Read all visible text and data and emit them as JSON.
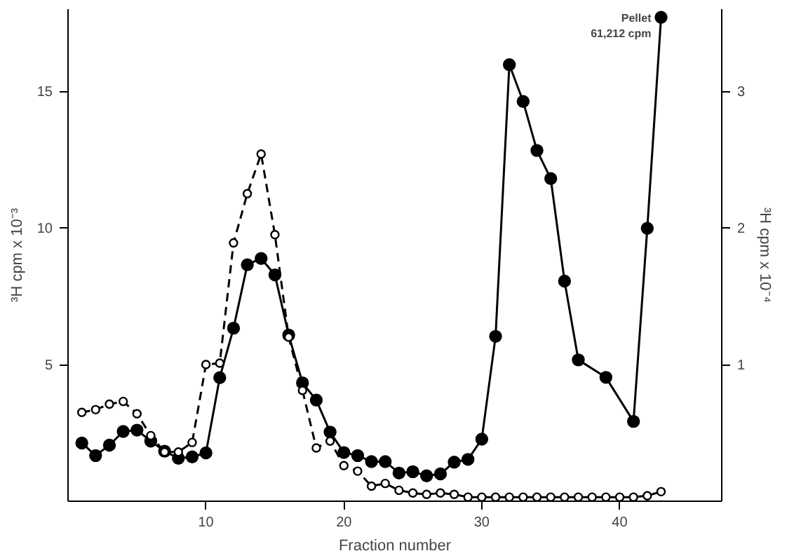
{
  "chart_data": {
    "type": "line",
    "xlabel": "Fraction number",
    "ylabel": "³H cpm x 10⁻³",
    "y2label": "³H cpm x 10⁻⁴",
    "xlim": [
      0,
      47.4
    ],
    "xticks": [
      10,
      20,
      30,
      40
    ],
    "ylim": [
      0,
      18
    ],
    "yticks": [
      5,
      10,
      15
    ],
    "y2lim": [
      0,
      3.6
    ],
    "y2ticks": [
      1,
      2,
      3
    ],
    "grid": false,
    "marker": "circle",
    "series": [
      {
        "color": "#000000",
        "line_style": "solid",
        "x": [
          1,
          2,
          3,
          4,
          5,
          6,
          7,
          8,
          9,
          10,
          11,
          12,
          13,
          14,
          15,
          16,
          17,
          18,
          19,
          20,
          21,
          22,
          23,
          24,
          25,
          26,
          27,
          28,
          29,
          30,
          31,
          32,
          33,
          34,
          35,
          36,
          37,
          39,
          41,
          42,
          43
        ],
        "values": [
          2.13,
          1.67,
          2.05,
          2.55,
          2.6,
          2.2,
          1.83,
          1.57,
          1.62,
          1.77,
          4.52,
          6.33,
          8.65,
          8.88,
          8.28,
          6.08,
          4.33,
          3.7,
          2.53,
          1.78,
          1.67,
          1.45,
          1.45,
          1.03,
          1.08,
          0.93,
          1.0,
          1.43,
          1.53,
          2.27,
          6.03,
          15.97,
          14.62,
          12.83,
          11.8,
          8.05,
          5.17,
          4.53,
          2.92,
          9.98,
          17.7
        ]
      },
      {
        "color": "#000000",
        "line_style": "dashed",
        "axis": "y2",
        "x": [
          1,
          2,
          3,
          4,
          5,
          6,
          7,
          8,
          9,
          10,
          11,
          12,
          13,
          14,
          15,
          16,
          17,
          18,
          19,
          20,
          21,
          22,
          23,
          24,
          25,
          26,
          27,
          28,
          29,
          30,
          31,
          32,
          33,
          34,
          35,
          36,
          37,
          38,
          39,
          40,
          41,
          42,
          43
        ],
        "values": [
          0.65,
          0.67,
          0.71,
          0.73,
          0.64,
          0.48,
          0.36,
          0.36,
          0.43,
          1.0,
          1.01,
          1.89,
          2.25,
          2.54,
          1.95,
          1.2,
          0.81,
          0.39,
          0.44,
          0.26,
          0.22,
          0.11,
          0.13,
          0.08,
          0.06,
          0.05,
          0.06,
          0.05,
          0.03,
          0.03,
          0.03,
          0.03,
          0.03,
          0.03,
          0.03,
          0.03,
          0.03,
          0.03,
          0.03,
          0.03,
          0.03,
          0.04,
          0.07
        ]
      }
    ],
    "annotations": [
      {
        "text": "Pellet\n61,212 cpm",
        "x": 43,
        "y": 17.7
      }
    ]
  }
}
